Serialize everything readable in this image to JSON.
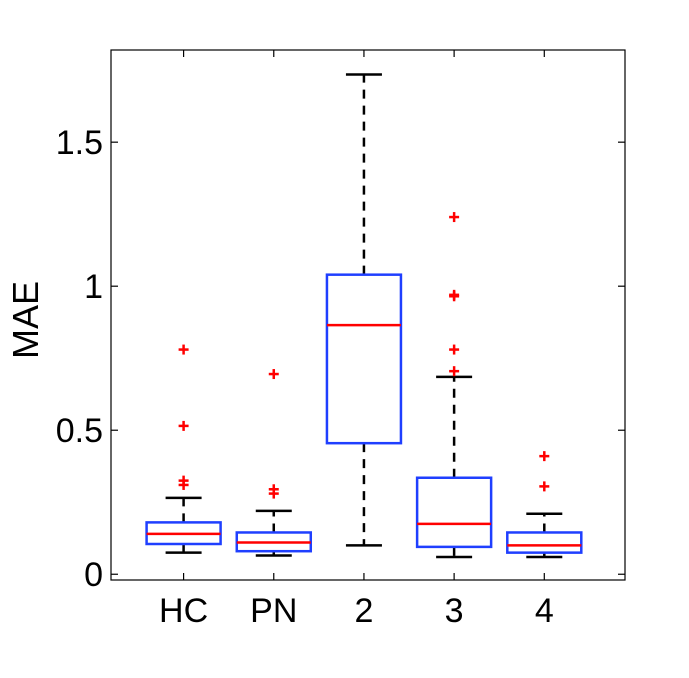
{
  "chart_data": {
    "type": "box",
    "ylabel": "MAE",
    "xlabel": "",
    "ylim": [
      -0.02,
      1.82
    ],
    "yticks": [
      0,
      0.5,
      1,
      1.5
    ],
    "ytick_labels": [
      "0",
      "0.5",
      "1",
      "1.5"
    ],
    "grid": false,
    "categories": [
      "HC",
      "PN",
      "2",
      "3",
      "4"
    ],
    "boxes": [
      {
        "label": "HC",
        "whisker_low": 0.075,
        "q1": 0.105,
        "median": 0.14,
        "q3": 0.18,
        "whisker_high": 0.265,
        "outliers": [
          0.31,
          0.325,
          0.515,
          0.78
        ]
      },
      {
        "label": "PN",
        "whisker_low": 0.065,
        "q1": 0.08,
        "median": 0.11,
        "q3": 0.145,
        "whisker_high": 0.22,
        "outliers": [
          0.28,
          0.295,
          0.695
        ]
      },
      {
        "label": "2",
        "whisker_low": 0.1,
        "q1": 0.455,
        "median": 0.865,
        "q3": 1.04,
        "whisker_high": 1.735,
        "outliers": []
      },
      {
        "label": "3",
        "whisker_low": 0.06,
        "q1": 0.095,
        "median": 0.175,
        "q3": 0.335,
        "whisker_high": 0.685,
        "outliers": [
          0.705,
          0.78,
          0.965,
          0.97,
          1.24
        ]
      },
      {
        "label": "4",
        "whisker_low": 0.06,
        "q1": 0.075,
        "median": 0.1,
        "q3": 0.145,
        "whisker_high": 0.21,
        "outliers": [
          0.305,
          0.41
        ]
      }
    ],
    "colors": {
      "box": "#1f3fff",
      "median": "#ff0000",
      "outlier": "#ff0000",
      "whisker": "#000000",
      "axis": "#000000"
    }
  }
}
